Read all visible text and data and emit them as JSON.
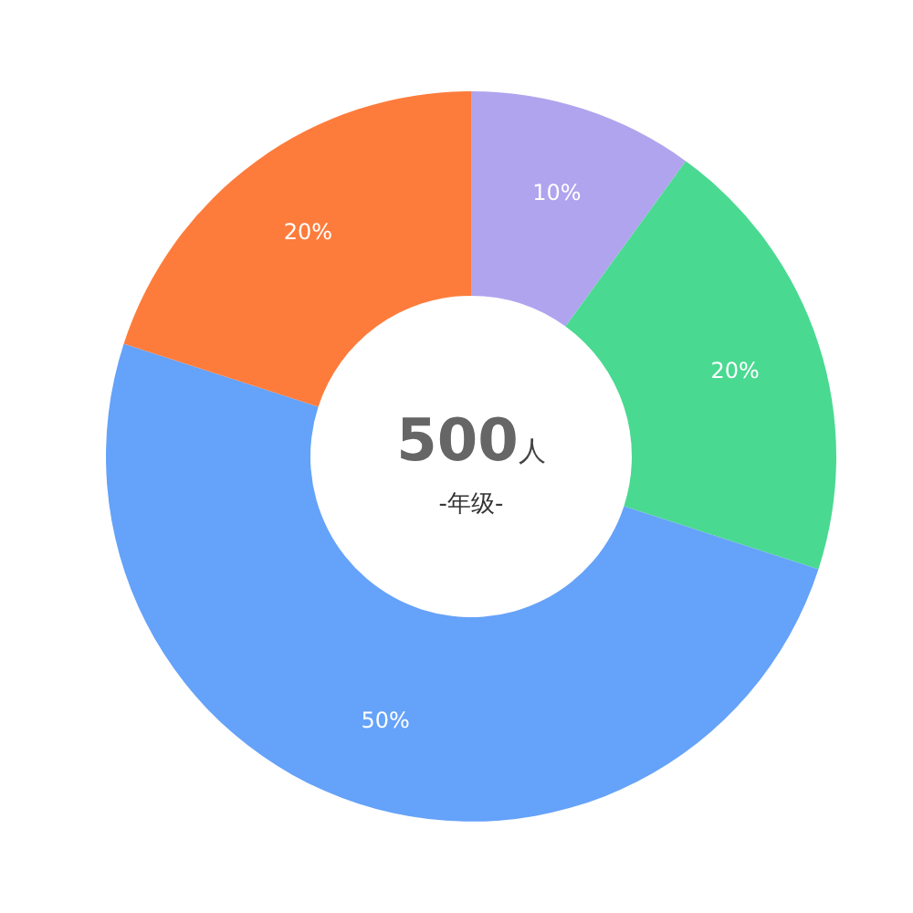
{
  "chart_data": {
    "type": "donut",
    "title": "500人",
    "subtitle": "-年级-",
    "categories": [
      null,
      null,
      null,
      null
    ],
    "values": [
      10,
      20,
      50,
      20
    ],
    "colors": [
      "#b0a4ee",
      "#4ad991",
      "#65a2f9",
      "#fd7c3c"
    ],
    "value_labels": [
      "10%",
      "20%",
      "50%",
      "20%"
    ]
  }
}
